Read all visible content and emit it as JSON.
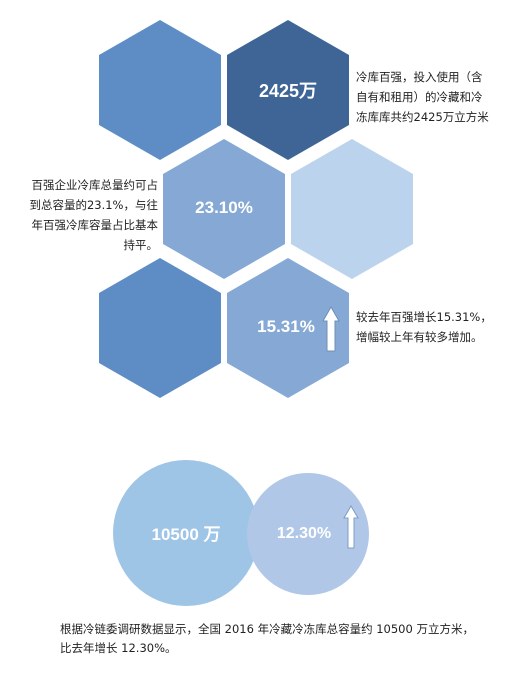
{
  "colors": {
    "hex_dark": "#3e6596",
    "hex_mid": "#5e8cc4",
    "hex_light": "#85a8d4",
    "hex_pale": "#bcd3ed",
    "circle_big": "#9ec4e6",
    "circle_small": "#b0c7e8"
  },
  "hexes": {
    "top_right_value": "2425万",
    "middle_value": "23.10%",
    "bottom_value": "15.31%"
  },
  "notes": {
    "top_right": [
      "冷库百强，投入使用（含",
      "自有和租用）的冷藏和冷",
      "冻库库共约2425万立方米"
    ],
    "middle_left": [
      "百强企业冷库总量约可占",
      "到总容量的23.1%，与往",
      "年百强冷库容量占比基本",
      "持平。"
    ],
    "bottom_right": [
      "较去年百强增长15.31%，",
      "增幅较上年有较多增加。"
    ]
  },
  "circles": {
    "big_value": "10500 万",
    "small_value": "12.30%"
  },
  "footer": [
    "根据冷链委调研数据显示，全国 2016 年冷藏冷冻库总容量约 10500 万立方米，",
    "比去年增长 12.30%。"
  ],
  "icons": [
    "arrow-up-icon"
  ]
}
